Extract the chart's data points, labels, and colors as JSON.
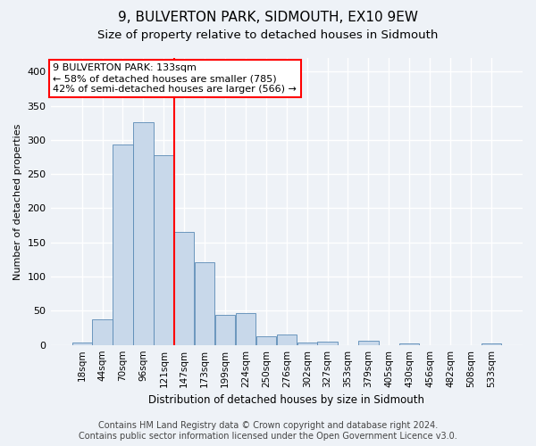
{
  "title": "9, BULVERTON PARK, SIDMOUTH, EX10 9EW",
  "subtitle": "Size of property relative to detached houses in Sidmouth",
  "xlabel": "Distribution of detached houses by size in Sidmouth",
  "ylabel": "Number of detached properties",
  "bin_labels": [
    "18sqm",
    "44sqm",
    "70sqm",
    "96sqm",
    "121sqm",
    "147sqm",
    "173sqm",
    "199sqm",
    "224sqm",
    "250sqm",
    "276sqm",
    "302sqm",
    "327sqm",
    "353sqm",
    "379sqm",
    "405sqm",
    "430sqm",
    "456sqm",
    "482sqm",
    "508sqm",
    "533sqm"
  ],
  "bar_heights": [
    3,
    38,
    294,
    326,
    278,
    165,
    121,
    44,
    46,
    13,
    15,
    4,
    5,
    0,
    6,
    0,
    2,
    0,
    0,
    0,
    2
  ],
  "bar_color": "#c8d8ea",
  "bar_edge_color": "#5a8ab5",
  "vline_x_idx": 4,
  "vline_color": "red",
  "annotation_line1": "9 BULVERTON PARK: 133sqm",
  "annotation_line2": "← 58% of detached houses are smaller (785)",
  "annotation_line3": "42% of semi-detached houses are larger (566) →",
  "annotation_box_color": "white",
  "annotation_box_edge_color": "red",
  "ylim": [
    0,
    420
  ],
  "yticks": [
    0,
    50,
    100,
    150,
    200,
    250,
    300,
    350,
    400
  ],
  "footer_line1": "Contains HM Land Registry data © Crown copyright and database right 2024.",
  "footer_line2": "Contains public sector information licensed under the Open Government Licence v3.0.",
  "background_color": "#eef2f7",
  "grid_color": "#ffffff",
  "title_fontsize": 11,
  "subtitle_fontsize": 9.5,
  "annotation_fontsize": 8,
  "footer_fontsize": 7,
  "ylabel_fontsize": 8,
  "xlabel_fontsize": 8.5,
  "tick_fontsize": 7.5,
  "ytick_fontsize": 8
}
